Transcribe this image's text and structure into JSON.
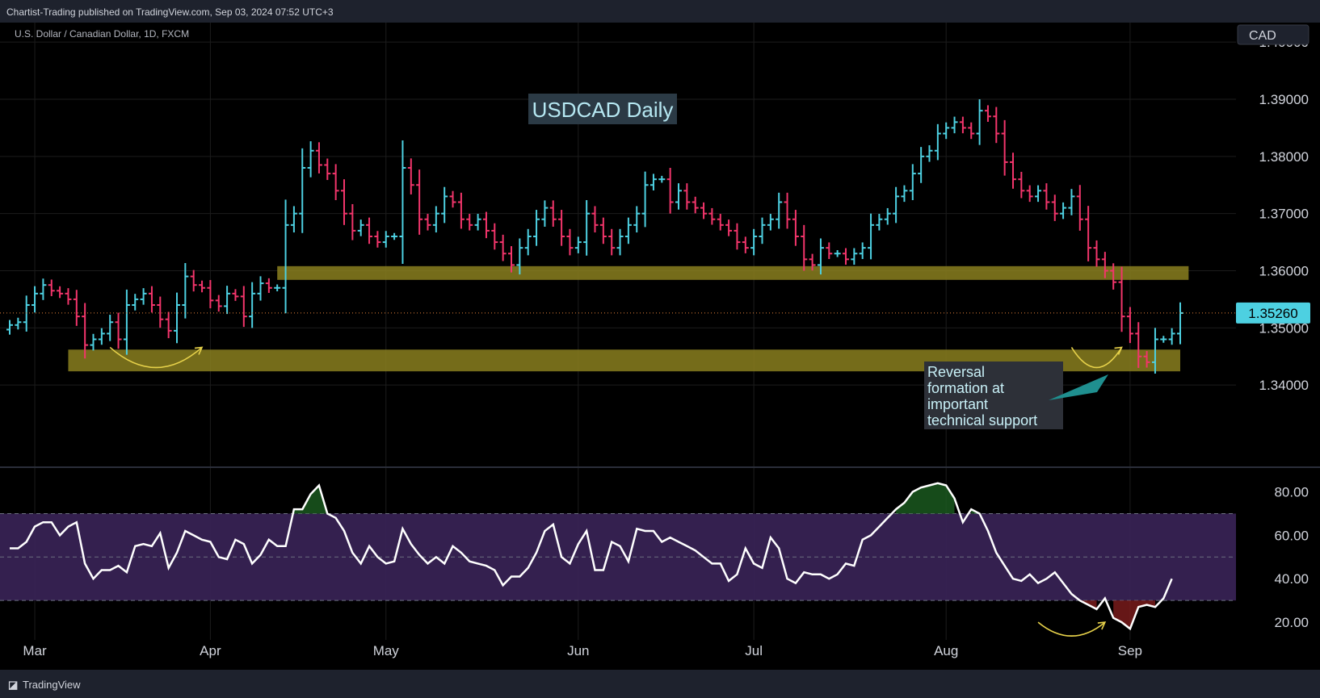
{
  "header": {
    "published_text": "Chartist-Trading published on TradingView.com, Sep 03, 2024 07:52 UTC+3"
  },
  "footer": {
    "brand": "TradingView"
  },
  "colors": {
    "up": "#4dd0e1",
    "down": "#f2356b",
    "zone": "#8a7f1f",
    "rsi_band": "#3a2358",
    "rsi_line": "#ffffff",
    "grid": "#1c1c1c",
    "annotation_arrow": "#e6d14a"
  },
  "chart_data": [
    {
      "type": "ohlc",
      "symbol_line": "U.S. Dollar / Canadian Dollar, 1D, FXCM",
      "title": "USDCAD Daily",
      "currency": "CAD",
      "last_price": "1.35260",
      "ylim": [
        1.33,
        1.402
      ],
      "y_ticks": [
        "1.34000",
        "1.35000",
        "1.36000",
        "1.37000",
        "1.38000",
        "1.39000",
        "1.40000"
      ],
      "x_ticks": [
        {
          "label": "Mar",
          "index": 3
        },
        {
          "label": "Apr",
          "index": 24
        },
        {
          "label": "May",
          "index": 45
        },
        {
          "label": "Jun",
          "index": 68
        },
        {
          "label": "Jul",
          "index": 89
        },
        {
          "label": "Aug",
          "index": 112
        },
        {
          "label": "Sep",
          "index": 134
        }
      ],
      "zones": [
        {
          "from_index": 32,
          "to_index": 141,
          "low": 1.3584,
          "high": 1.3608
        },
        {
          "from_index": 7,
          "to_index": 140,
          "low": 1.3424,
          "high": 1.3462
        }
      ],
      "annotation": "Reversal formation at important technical support",
      "close": [
        1.3505,
        1.351,
        1.354,
        1.356,
        1.3575,
        1.3565,
        1.356,
        1.355,
        1.352,
        1.347,
        1.348,
        1.349,
        1.351,
        1.348,
        1.354,
        1.355,
        1.356,
        1.354,
        1.3515,
        1.3495,
        1.354,
        1.359,
        1.3575,
        1.357,
        1.3548,
        1.3538,
        1.356,
        1.3555,
        1.352,
        1.356,
        1.3578,
        1.357,
        1.357,
        1.368,
        1.37,
        1.378,
        1.381,
        1.3785,
        1.377,
        1.374,
        1.37,
        1.367,
        1.368,
        1.366,
        1.365,
        1.366,
        1.366,
        1.378,
        1.375,
        1.369,
        1.368,
        1.37,
        1.373,
        1.372,
        1.369,
        1.368,
        1.369,
        1.367,
        1.365,
        1.363,
        1.361,
        1.364,
        1.366,
        1.369,
        1.371,
        1.369,
        1.366,
        1.364,
        1.365,
        1.37,
        1.368,
        1.366,
        1.364,
        1.366,
        1.368,
        1.37,
        1.375,
        1.376,
        1.376,
        1.372,
        1.374,
        1.372,
        1.371,
        1.37,
        1.369,
        1.368,
        1.367,
        1.365,
        1.364,
        1.366,
        1.368,
        1.369,
        1.372,
        1.369,
        1.366,
        1.362,
        1.361,
        1.364,
        1.363,
        1.363,
        1.362,
        1.363,
        1.364,
        1.368,
        1.369,
        1.37,
        1.373,
        1.374,
        1.377,
        1.38,
        1.381,
        1.384,
        1.385,
        1.386,
        1.385,
        1.384,
        1.388,
        1.387,
        1.384,
        1.379,
        1.376,
        1.374,
        1.373,
        1.374,
        1.372,
        1.37,
        1.371,
        1.373,
        1.369,
        1.364,
        1.362,
        1.36,
        1.358,
        1.352,
        1.349,
        1.345,
        1.344,
        1.348,
        1.348,
        1.349,
        1.3526
      ]
    },
    {
      "type": "line",
      "indicator": "RSI",
      "ylim": [
        10,
        88
      ],
      "y_ticks": [
        "20.00",
        "40.00",
        "60.00",
        "80.00"
      ],
      "band": [
        30,
        70
      ],
      "midline": 50,
      "values": [
        54,
        54,
        57,
        64,
        66,
        66,
        60,
        64,
        66,
        47,
        40,
        44,
        44,
        46,
        43,
        55,
        56,
        55,
        61,
        45,
        52,
        62,
        60,
        58,
        57,
        50,
        49,
        58,
        56,
        47,
        51,
        58,
        55,
        55,
        72,
        72,
        79,
        83,
        70,
        68,
        62,
        52,
        47,
        55,
        50,
        47,
        48,
        63,
        56,
        51,
        47,
        50,
        47,
        55,
        52,
        48,
        47,
        46,
        44,
        37,
        41,
        41,
        45,
        52,
        62,
        65,
        50,
        47,
        56,
        62,
        44,
        44,
        57,
        55,
        48,
        63,
        62,
        62,
        57,
        59,
        57,
        55,
        53,
        50,
        47,
        47,
        39,
        42,
        54,
        47,
        45,
        59,
        54,
        40,
        38,
        43,
        42,
        42,
        40,
        42,
        47,
        46,
        58,
        60,
        64,
        68,
        72,
        75,
        80,
        82,
        83,
        84,
        83,
        77,
        66,
        72,
        70,
        62,
        52,
        46,
        40,
        39,
        42,
        38,
        40,
        43,
        38,
        33,
        30,
        28,
        26,
        31,
        22,
        20,
        17,
        27,
        28,
        27,
        31,
        40
      ]
    }
  ]
}
